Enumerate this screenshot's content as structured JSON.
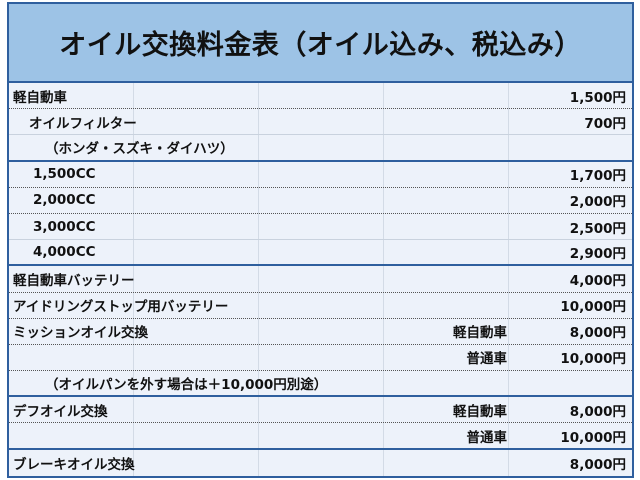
{
  "title": "オイル交換料金表（オイル込み、税込み）",
  "colors": {
    "header_bg": "#9dc3e6",
    "border": "#2f5f9e",
    "row_bg": "#edf2fa"
  },
  "rows": [
    {
      "label": "軽自動車",
      "sub": "",
      "price": "1,500円"
    },
    {
      "label": "オイルフィルター",
      "sub": "",
      "price": "700円"
    },
    {
      "label": "（ホンダ・スズキ・ダイハツ）",
      "sub": "",
      "price": ""
    },
    {
      "label": "1,500CC",
      "sub": "",
      "price": "1,700円"
    },
    {
      "label": "2,000CC",
      "sub": "",
      "price": "2,000円"
    },
    {
      "label": "3,000CC",
      "sub": "",
      "price": "2,500円"
    },
    {
      "label": "4,000CC",
      "sub": "",
      "price": "2,900円"
    },
    {
      "label": "軽自動車バッテリー",
      "sub": "",
      "price": "4,000円"
    },
    {
      "label": "アイドリングストップ用バッテリー",
      "sub": "",
      "price": "10,000円"
    },
    {
      "label": "ミッションオイル交換",
      "sub": "軽自動車",
      "price": "8,000円"
    },
    {
      "label": "",
      "sub": "普通車",
      "price": "10,000円"
    },
    {
      "label": "（オイルパンを外す場合は＋10,000円別途）",
      "sub": "",
      "price": ""
    },
    {
      "label": "デフオイル交換",
      "sub": "軽自動車",
      "price": "8,000円"
    },
    {
      "label": "",
      "sub": "普通車",
      "price": "10,000円"
    },
    {
      "label": "ブレーキオイル交換",
      "sub": "",
      "price": "8,000円"
    }
  ]
}
